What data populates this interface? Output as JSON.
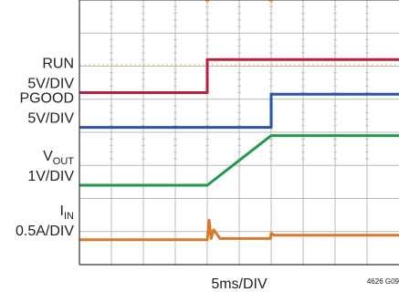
{
  "chart_data": {
    "type": "line",
    "title": "",
    "xlabel": "5ms/DIV",
    "figure_id": "4626 G09",
    "x_unit": "ms",
    "xlim": [
      0,
      50
    ],
    "grid": true,
    "grid_divisions": {
      "x": 10,
      "y": 8
    },
    "series": [
      {
        "name": "RUN",
        "name_sub": "",
        "scale": "5V/DIV",
        "color": "#b5213f",
        "x": [
          0,
          20,
          20,
          50
        ],
        "y": [
          0,
          0,
          5,
          5
        ],
        "y_unit": "V",
        "volts_per_div": 5,
        "baseline_div": 5.2,
        "threshold_div": 6.04,
        "threshold_color": "#f2b45a"
      },
      {
        "name": "PGOOD",
        "name_sub": "",
        "scale": "5V/DIV",
        "color": "#2a54a8",
        "x": [
          0,
          30,
          30,
          50
        ],
        "y": [
          0,
          0,
          5,
          5
        ],
        "y_unit": "V",
        "volts_per_div": 5,
        "baseline_div": 4.15
      },
      {
        "name": "V",
        "name_sub": "OUT",
        "scale": "1V/DIV",
        "color": "#1e9a4b",
        "x": [
          0,
          20,
          30,
          50
        ],
        "y": [
          0,
          0,
          1.5,
          1.5
        ],
        "y_unit": "V",
        "volts_per_div": 1,
        "baseline_div": 2.4
      },
      {
        "name": "I",
        "name_sub": "IN",
        "scale": "0.5A/DIV",
        "color": "#d57a2b",
        "x": [
          0,
          20,
          20.3,
          20.6,
          21,
          22,
          29.9,
          30,
          30.4,
          50
        ],
        "y": [
          0,
          0,
          0.3,
          0.02,
          0.15,
          0.02,
          0.02,
          0.1,
          0.07,
          0.07
        ],
        "y_unit": "A",
        "volts_per_div": 0.5,
        "baseline_div": 0.75
      }
    ]
  }
}
